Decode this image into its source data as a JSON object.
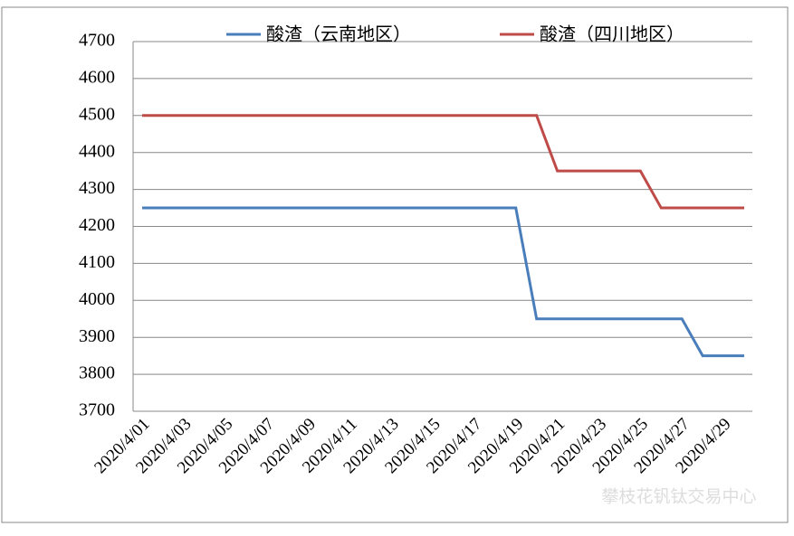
{
  "chart_data": {
    "type": "line",
    "categories": [
      "2020/4/01",
      null,
      "2020/4/03",
      null,
      "2020/4/05",
      null,
      "2020/4/07",
      null,
      "2020/4/09",
      null,
      "2020/4/11",
      null,
      "2020/4/13",
      null,
      "2020/4/15",
      null,
      "2020/4/17",
      null,
      "2020/4/19",
      null,
      "2020/4/21",
      null,
      "2020/4/23",
      null,
      "2020/4/25",
      null,
      "2020/4/27",
      null,
      "2020/4/29",
      null
    ],
    "series": [
      {
        "name": "酸渣（云南地区）",
        "color": "#4a7ebb",
        "values": [
          4250,
          4250,
          4250,
          4250,
          4250,
          4250,
          4250,
          4250,
          4250,
          4250,
          4250,
          4250,
          4250,
          4250,
          4250,
          4250,
          4250,
          4250,
          4250,
          3950,
          3950,
          3950,
          3950,
          3950,
          3950,
          3950,
          3950,
          3850,
          3850,
          3850
        ]
      },
      {
        "name": "酸渣（四川地区）",
        "color": "#be4b48",
        "values": [
          4500,
          4500,
          4500,
          4500,
          4500,
          4500,
          4500,
          4500,
          4500,
          4500,
          4500,
          4500,
          4500,
          4500,
          4500,
          4500,
          4500,
          4500,
          4500,
          4500,
          4350,
          4350,
          4350,
          4350,
          4350,
          4250,
          4250,
          4250,
          4250,
          4250
        ]
      }
    ],
    "ylim": [
      3700,
      4700
    ],
    "yticks": [
      3700,
      3800,
      3900,
      4000,
      4100,
      4200,
      4300,
      4400,
      4500,
      4600,
      4700
    ],
    "grid": true,
    "legend": "top",
    "annotation": "攀枝花钒钛交易中心"
  }
}
